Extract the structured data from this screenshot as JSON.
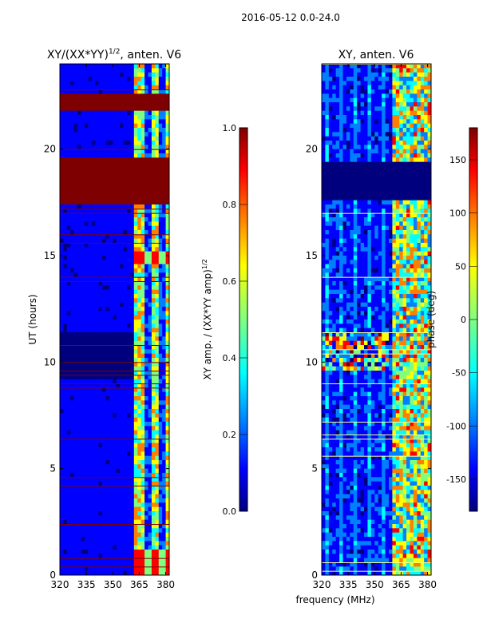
{
  "suptitle": "2016-05-12 0.0-24.0",
  "shared_xlabel": "frequency (MHz)",
  "chart_data": [
    {
      "type": "heatmap",
      "title": "XY/(XX*YY)^1/2, anten. V6",
      "title_main": "XY/(XX*YY)",
      "title_sup": "1/2",
      "title_tail": ", anten. V6",
      "xlabel": "",
      "ylabel": "UT (hours)",
      "xlim": [
        320,
        382
      ],
      "ylim": [
        0,
        24
      ],
      "xticks": [
        320,
        335,
        350,
        365,
        380
      ],
      "yticks": [
        0,
        5,
        10,
        15,
        20
      ],
      "colorbar": {
        "label_main": "XY amp. / (XX*YY amp)",
        "label_sup": "1/2",
        "range": [
          0.0,
          1.0
        ],
        "ticks": [
          "0.0",
          "0.2",
          "0.4",
          "0.6",
          "0.8",
          "1.0"
        ]
      },
      "features": {
        "saturated_hour_bands": [
          [
            17.5,
            19.6
          ],
          [
            22.3,
            22.6
          ],
          [
            21.9,
            22.1
          ],
          [
            5.9,
            6.1
          ],
          [
            3.0,
            3.1
          ]
        ],
        "active_freq_range": [
          363,
          381
        ],
        "low_level_hour_band": [
          9.2,
          11.5
        ]
      }
    },
    {
      "type": "heatmap",
      "title": "XY, anten. V6",
      "xlabel": "frequency (MHz)",
      "ylabel": "",
      "xlim": [
        320,
        382
      ],
      "ylim": [
        0,
        24
      ],
      "xticks": [
        320,
        335,
        350,
        365,
        380
      ],
      "yticks": [
        0,
        5,
        10,
        15,
        20
      ],
      "colorbar": {
        "label": "phase (deg)",
        "range": [
          -180,
          180
        ],
        "ticks": [
          "-150",
          "-100",
          "-50",
          "0",
          "50",
          "100",
          "150"
        ]
      },
      "features": {
        "uniform_hour_band": [
          17.6,
          19.4
        ],
        "noisy_region_hours": [
          9.5,
          11.5
        ],
        "noisy_region_freq": [
          320,
          358
        ]
      }
    }
  ],
  "colors": {
    "jet": [
      "#00007f",
      "#0000ff",
      "#007fff",
      "#00ffff",
      "#7fff7f",
      "#ffff00",
      "#ff7f00",
      "#ff0000",
      "#7f0000"
    ]
  }
}
